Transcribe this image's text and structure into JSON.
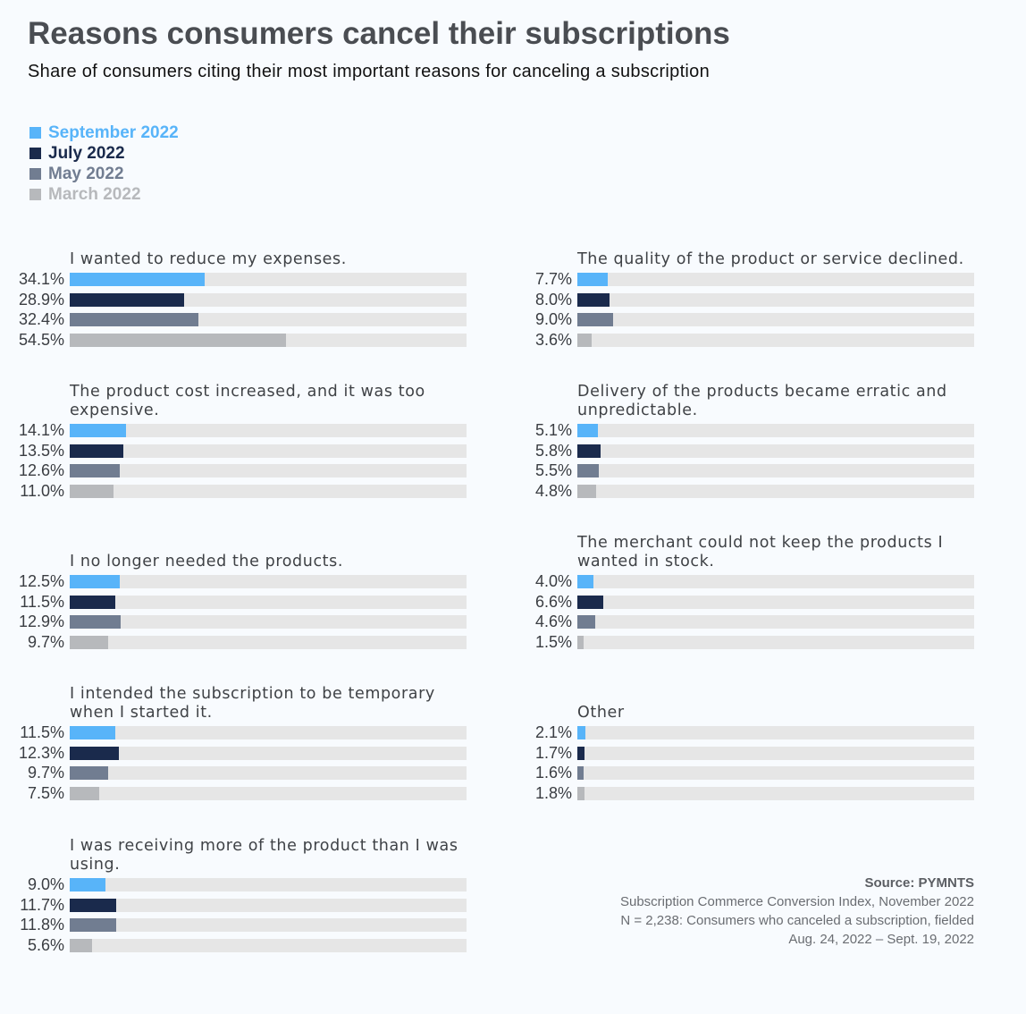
{
  "title": "Reasons consumers cancel their subscriptions",
  "subtitle": "Share of consumers citing their most important reasons for canceling a subscription",
  "source": {
    "label": "Source: PYMNTS",
    "line1": "Subscription Commerce Conversion Index, November 2022",
    "line2": "N = 2,238: Consumers who canceled a subscription, fielded",
    "line3": "Aug. 24, 2022 – Sept. 19, 2022"
  },
  "chart_data": {
    "type": "bar",
    "orientation": "horizontal",
    "xlim": [
      0,
      100
    ],
    "unit": "%",
    "legend_position": "top-left",
    "series": [
      {
        "name": "September 2022",
        "color": "#58b4f9"
      },
      {
        "name": "July 2022",
        "color": "#1a2a4c"
      },
      {
        "name": "May 2022",
        "color": "#717d91"
      },
      {
        "name": "March 2022",
        "color": "#b7b9bc"
      }
    ],
    "groups": [
      {
        "label": "I wanted to reduce my expenses.",
        "values": [
          34.1,
          28.9,
          32.4,
          54.5
        ],
        "labels": [
          "34.1%",
          "28.9%",
          "32.4%",
          "54.5%"
        ]
      },
      {
        "label": "The product cost increased, and it was too expensive.",
        "values": [
          14.1,
          13.5,
          12.6,
          11.0
        ],
        "labels": [
          "14.1%",
          "13.5%",
          "12.6%",
          "11.0%"
        ]
      },
      {
        "label": "I no longer needed the products.",
        "values": [
          12.5,
          11.5,
          12.9,
          9.7
        ],
        "labels": [
          "12.5%",
          "11.5%",
          "12.9%",
          "9.7%"
        ]
      },
      {
        "label": "I intended the subscription to be temporary when I started it.",
        "values": [
          11.5,
          12.3,
          9.7,
          7.5
        ],
        "labels": [
          "11.5%",
          "12.3%",
          "9.7%",
          "7.5%"
        ]
      },
      {
        "label": "I was receiving more of the product than I was using.",
        "values": [
          9.0,
          11.7,
          11.8,
          5.6
        ],
        "labels": [
          "9.0%",
          "11.7%",
          "11.8%",
          "5.6%"
        ]
      },
      {
        "label": "The quality of the product or service declined.",
        "values": [
          7.7,
          8.0,
          9.0,
          3.6
        ],
        "labels": [
          "7.7%",
          "8.0%",
          "9.0%",
          "3.6%"
        ]
      },
      {
        "label": "Delivery of the products became erratic and unpredictable.",
        "values": [
          5.1,
          5.8,
          5.5,
          4.8
        ],
        "labels": [
          "5.1%",
          "5.8%",
          "5.5%",
          "4.8%"
        ]
      },
      {
        "label": "The merchant could not keep the products I wanted in stock.",
        "values": [
          4.0,
          6.6,
          4.6,
          1.5
        ],
        "labels": [
          "4.0%",
          "6.6%",
          "4.6%",
          "1.5%"
        ]
      },
      {
        "label": "Other",
        "values": [
          2.1,
          1.7,
          1.6,
          1.8
        ],
        "labels": [
          "2.1%",
          "1.7%",
          "1.6%",
          "1.8%"
        ]
      }
    ]
  }
}
